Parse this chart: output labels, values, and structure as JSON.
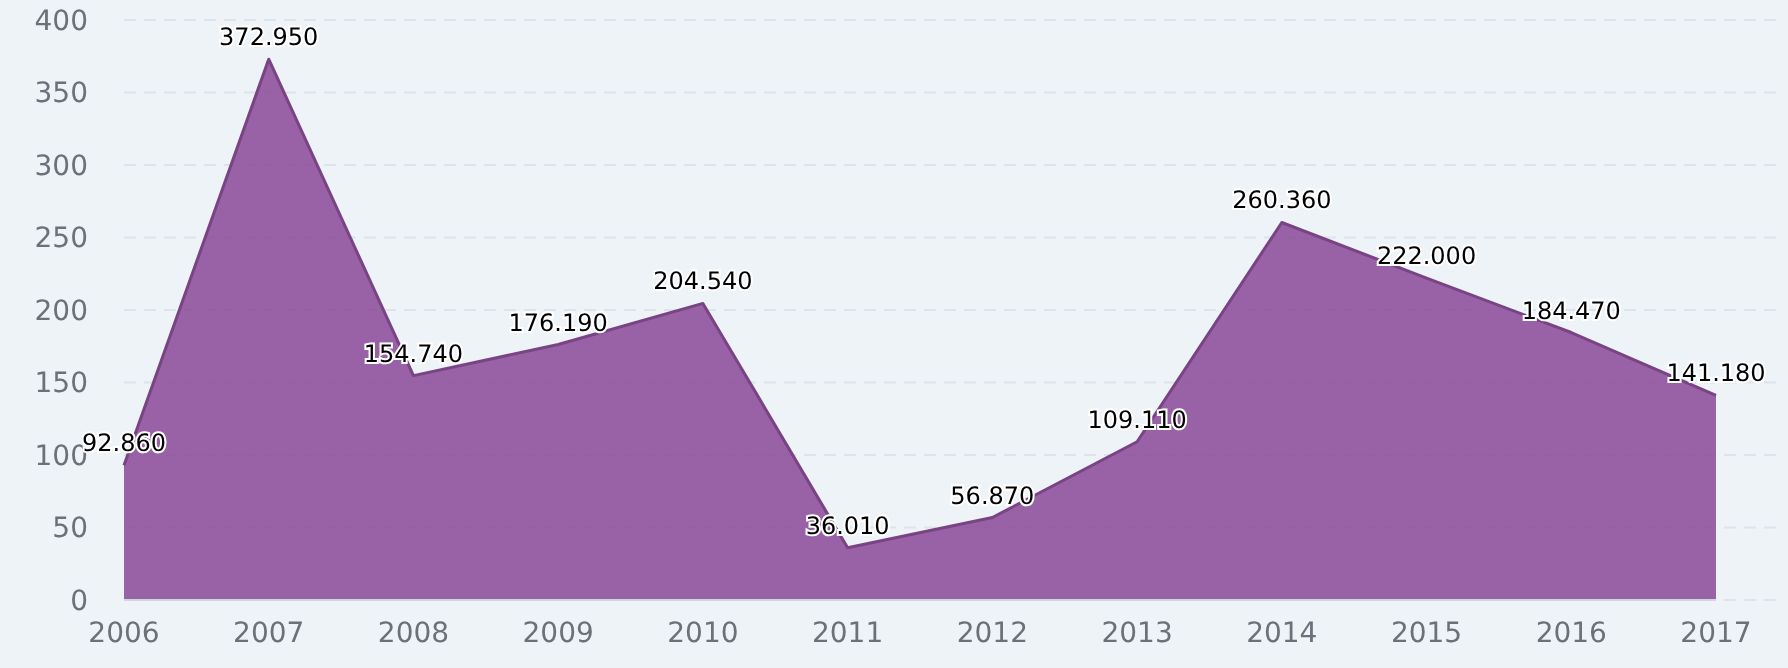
{
  "chart_data": {
    "type": "area",
    "categories": [
      "2006",
      "2007",
      "2008",
      "2009",
      "2010",
      "2011",
      "2012",
      "2013",
      "2014",
      "2015",
      "2016",
      "2017"
    ],
    "values": [
      92.86,
      372.95,
      154.74,
      176.19,
      204.54,
      36.01,
      56.87,
      109.11,
      260.36,
      222.0,
      184.47,
      141.18
    ],
    "value_labels": [
      "92.860",
      "372.950",
      "154.740",
      "176.190",
      "204.540",
      "36.010",
      "56.870",
      "109.110",
      "260.360",
      "222.000",
      "184.470",
      "141.180"
    ],
    "color": "#8f519c",
    "ylim": [
      0,
      400
    ],
    "yticks": [
      0,
      50,
      100,
      150,
      200,
      250,
      300,
      350,
      400
    ],
    "grid": "y"
  }
}
